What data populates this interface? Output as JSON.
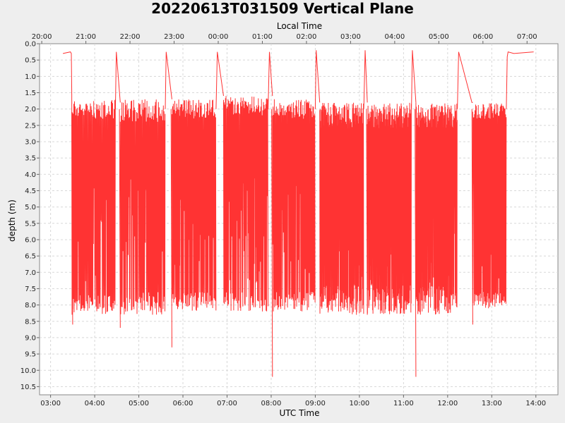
{
  "chart_data": {
    "type": "line",
    "title": "20220613T031509 Vertical Plane",
    "xlabel": "UTC Time",
    "x2label": "Local Time",
    "ylabel": "depth (m)",
    "x_unit": "hours UTC",
    "xlim": [
      2.75,
      14.5
    ],
    "ylim": [
      0.0,
      10.75
    ],
    "y_inverted": true,
    "grid": true,
    "color": "#ff3333",
    "x_ticks": [
      {
        "value": 3,
        "label": "03:00"
      },
      {
        "value": 4,
        "label": "04:00"
      },
      {
        "value": 5,
        "label": "05:00"
      },
      {
        "value": 6,
        "label": "06:00"
      },
      {
        "value": 7,
        "label": "07:00"
      },
      {
        "value": 8,
        "label": "08:00"
      },
      {
        "value": 9,
        "label": "09:00"
      },
      {
        "value": 10,
        "label": "10:00"
      },
      {
        "value": 11,
        "label": "11:00"
      },
      {
        "value": 12,
        "label": "12:00"
      },
      {
        "value": 13,
        "label": "13:00"
      },
      {
        "value": 14,
        "label": "14:00"
      }
    ],
    "x2_ticks": [
      {
        "value": 2.8,
        "label": "20:00"
      },
      {
        "value": 3.8,
        "label": "21:00"
      },
      {
        "value": 4.8,
        "label": "22:00"
      },
      {
        "value": 5.8,
        "label": "23:00"
      },
      {
        "value": 6.8,
        "label": "00:00"
      },
      {
        "value": 7.8,
        "label": "01:00"
      },
      {
        "value": 8.8,
        "label": "02:00"
      },
      {
        "value": 9.8,
        "label": "03:00"
      },
      {
        "value": 10.8,
        "label": "04:00"
      },
      {
        "value": 11.8,
        "label": "05:00"
      },
      {
        "value": 12.8,
        "label": "06:00"
      },
      {
        "value": 13.8,
        "label": "07:00"
      }
    ],
    "y_ticks": [
      "0.0",
      "0.5",
      "1.0",
      "1.5",
      "2.0",
      "2.5",
      "3.0",
      "3.5",
      "4.0",
      "4.5",
      "5.0",
      "5.5",
      "6.0",
      "6.5",
      "7.0",
      "7.5",
      "8.0",
      "8.5",
      "9.0",
      "9.5",
      "10.0",
      "10.5"
    ],
    "segments": [
      {
        "start": 3.48,
        "end": 4.47,
        "shallow": [
          1.7,
          2.3
        ],
        "deep": [
          7.7,
          8.3
        ],
        "period": 0.0155
      },
      {
        "start": 4.58,
        "end": 5.6,
        "shallow": [
          1.7,
          2.4
        ],
        "deep": [
          7.6,
          8.3
        ],
        "period": 0.0155
      },
      {
        "start": 5.75,
        "end": 6.75,
        "shallow": [
          1.7,
          2.3
        ],
        "deep": [
          7.6,
          8.2
        ],
        "period": 0.0145
      },
      {
        "start": 6.92,
        "end": 7.93,
        "shallow": [
          1.6,
          2.2
        ],
        "deep": [
          7.6,
          8.2
        ],
        "period": 0.0145
      },
      {
        "start": 8.03,
        "end": 9.0,
        "shallow": [
          1.7,
          2.3
        ],
        "deep": [
          7.6,
          8.2
        ],
        "period": 0.0145
      },
      {
        "start": 9.1,
        "end": 10.1,
        "shallow": [
          1.8,
          2.6
        ],
        "deep": [
          7.4,
          8.3
        ],
        "period": 0.0085
      },
      {
        "start": 10.18,
        "end": 11.18,
        "shallow": [
          1.8,
          2.6
        ],
        "deep": [
          7.4,
          8.3
        ],
        "period": 0.0085
      },
      {
        "start": 11.28,
        "end": 12.22,
        "shallow": [
          1.8,
          2.6
        ],
        "deep": [
          7.4,
          8.3
        ],
        "period": 0.0095
      },
      {
        "start": 12.57,
        "end": 13.33,
        "shallow": [
          1.8,
          2.3
        ],
        "deep": [
          7.6,
          8.1
        ],
        "period": 0.0135
      }
    ],
    "connectors": [
      {
        "x": [
          3.28,
          3.45,
          3.47,
          3.48
        ],
        "y": [
          0.3,
          0.25,
          0.3,
          1.5
        ]
      },
      {
        "x": [
          3.48,
          3.5
        ],
        "y": [
          1.5,
          8.6
        ]
      },
      {
        "x": [
          4.47,
          4.49,
          4.58
        ],
        "y": [
          2.0,
          0.25,
          1.8
        ]
      },
      {
        "x": [
          4.56,
          4.58
        ],
        "y": [
          2.0,
          8.7
        ]
      },
      {
        "x": [
          5.6,
          5.62,
          5.75
        ],
        "y": [
          2.0,
          0.25,
          1.7
        ]
      },
      {
        "x": [
          5.73,
          5.75
        ],
        "y": [
          2.0,
          9.3
        ]
      },
      {
        "x": [
          6.75,
          6.78,
          6.92
        ],
        "y": [
          2.0,
          0.25,
          1.6
        ]
      },
      {
        "x": [
          7.93,
          7.96,
          8.03
        ],
        "y": [
          2.0,
          0.25,
          1.6
        ]
      },
      {
        "x": [
          8.01,
          8.03
        ],
        "y": [
          2.0,
          10.2
        ]
      },
      {
        "x": [
          9.0,
          9.02,
          9.1
        ],
        "y": [
          2.0,
          0.2,
          1.8
        ]
      },
      {
        "x": [
          10.1,
          10.13,
          10.18
        ],
        "y": [
          2.0,
          0.2,
          1.8
        ]
      },
      {
        "x": [
          10.16,
          10.18
        ],
        "y": [
          2.0,
          8.3
        ]
      },
      {
        "x": [
          11.18,
          11.2,
          11.28
        ],
        "y": [
          2.0,
          0.2,
          1.8
        ]
      },
      {
        "x": [
          11.26,
          11.28
        ],
        "y": [
          2.0,
          10.2
        ]
      },
      {
        "x": [
          12.22,
          12.25,
          12.55,
          12.57
        ],
        "y": [
          2.0,
          0.25,
          1.8,
          1.8
        ]
      },
      {
        "x": [
          12.55,
          12.57
        ],
        "y": [
          2.0,
          8.6
        ]
      },
      {
        "x": [
          13.33,
          13.35,
          13.37,
          13.5,
          13.95
        ],
        "y": [
          2.0,
          0.4,
          0.25,
          0.3,
          0.25
        ]
      }
    ]
  }
}
